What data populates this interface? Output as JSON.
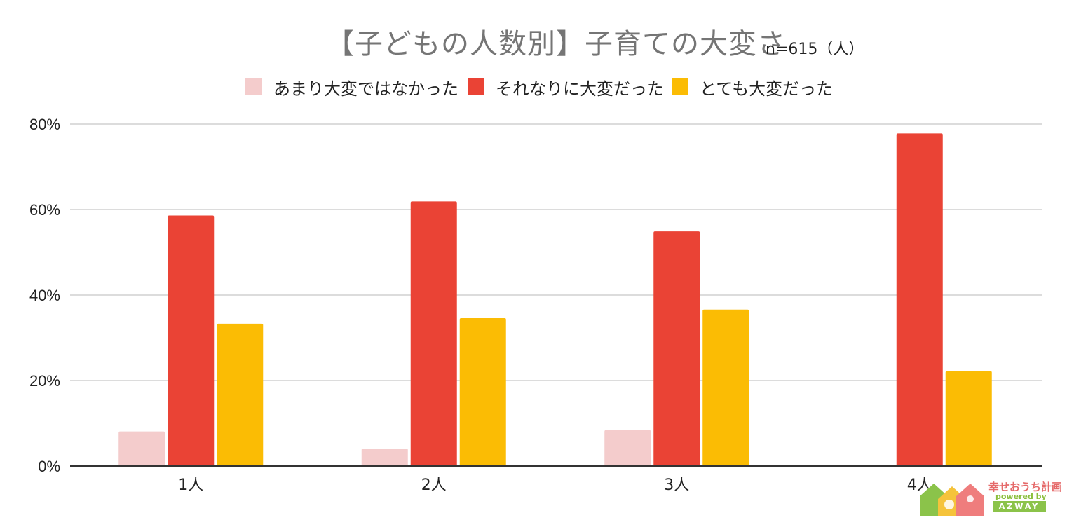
{
  "header": {
    "title": "【子どもの人数別】子育ての大変さ",
    "sample_note": "n=615（人）"
  },
  "legend": [
    {
      "label": "あまり大変ではなかった",
      "color": "#f4cccc"
    },
    {
      "label": "それなりに大変だった",
      "color": "#ea4335"
    },
    {
      "label": "とても大変だった",
      "color": "#fbbc04"
    }
  ],
  "chart_data": {
    "type": "bar",
    "title": "【子どもの人数別】子育ての大変さ",
    "categories": [
      "1人",
      "2人",
      "3人",
      "4人"
    ],
    "series": [
      {
        "name": "あまり大変ではなかった",
        "color": "#f4cccc",
        "values": [
          8.1,
          4.1,
          8.4,
          0
        ]
      },
      {
        "name": "それなりに大変だった",
        "color": "#ea4335",
        "values": [
          58.6,
          61.9,
          54.9,
          77.8
        ]
      },
      {
        "name": "とても大変だった",
        "color": "#fbbc04",
        "values": [
          33.3,
          34.6,
          36.6,
          22.2
        ]
      }
    ],
    "y_ticks": [
      "0%",
      "20%",
      "40%",
      "60%",
      "80%"
    ],
    "ylim": [
      0,
      80
    ],
    "y_unit": "%",
    "grid": true,
    "legend_position": "top"
  },
  "logo": {
    "name": "幸せおうち計画",
    "powered": "powered by",
    "brand": "AZWAY"
  }
}
